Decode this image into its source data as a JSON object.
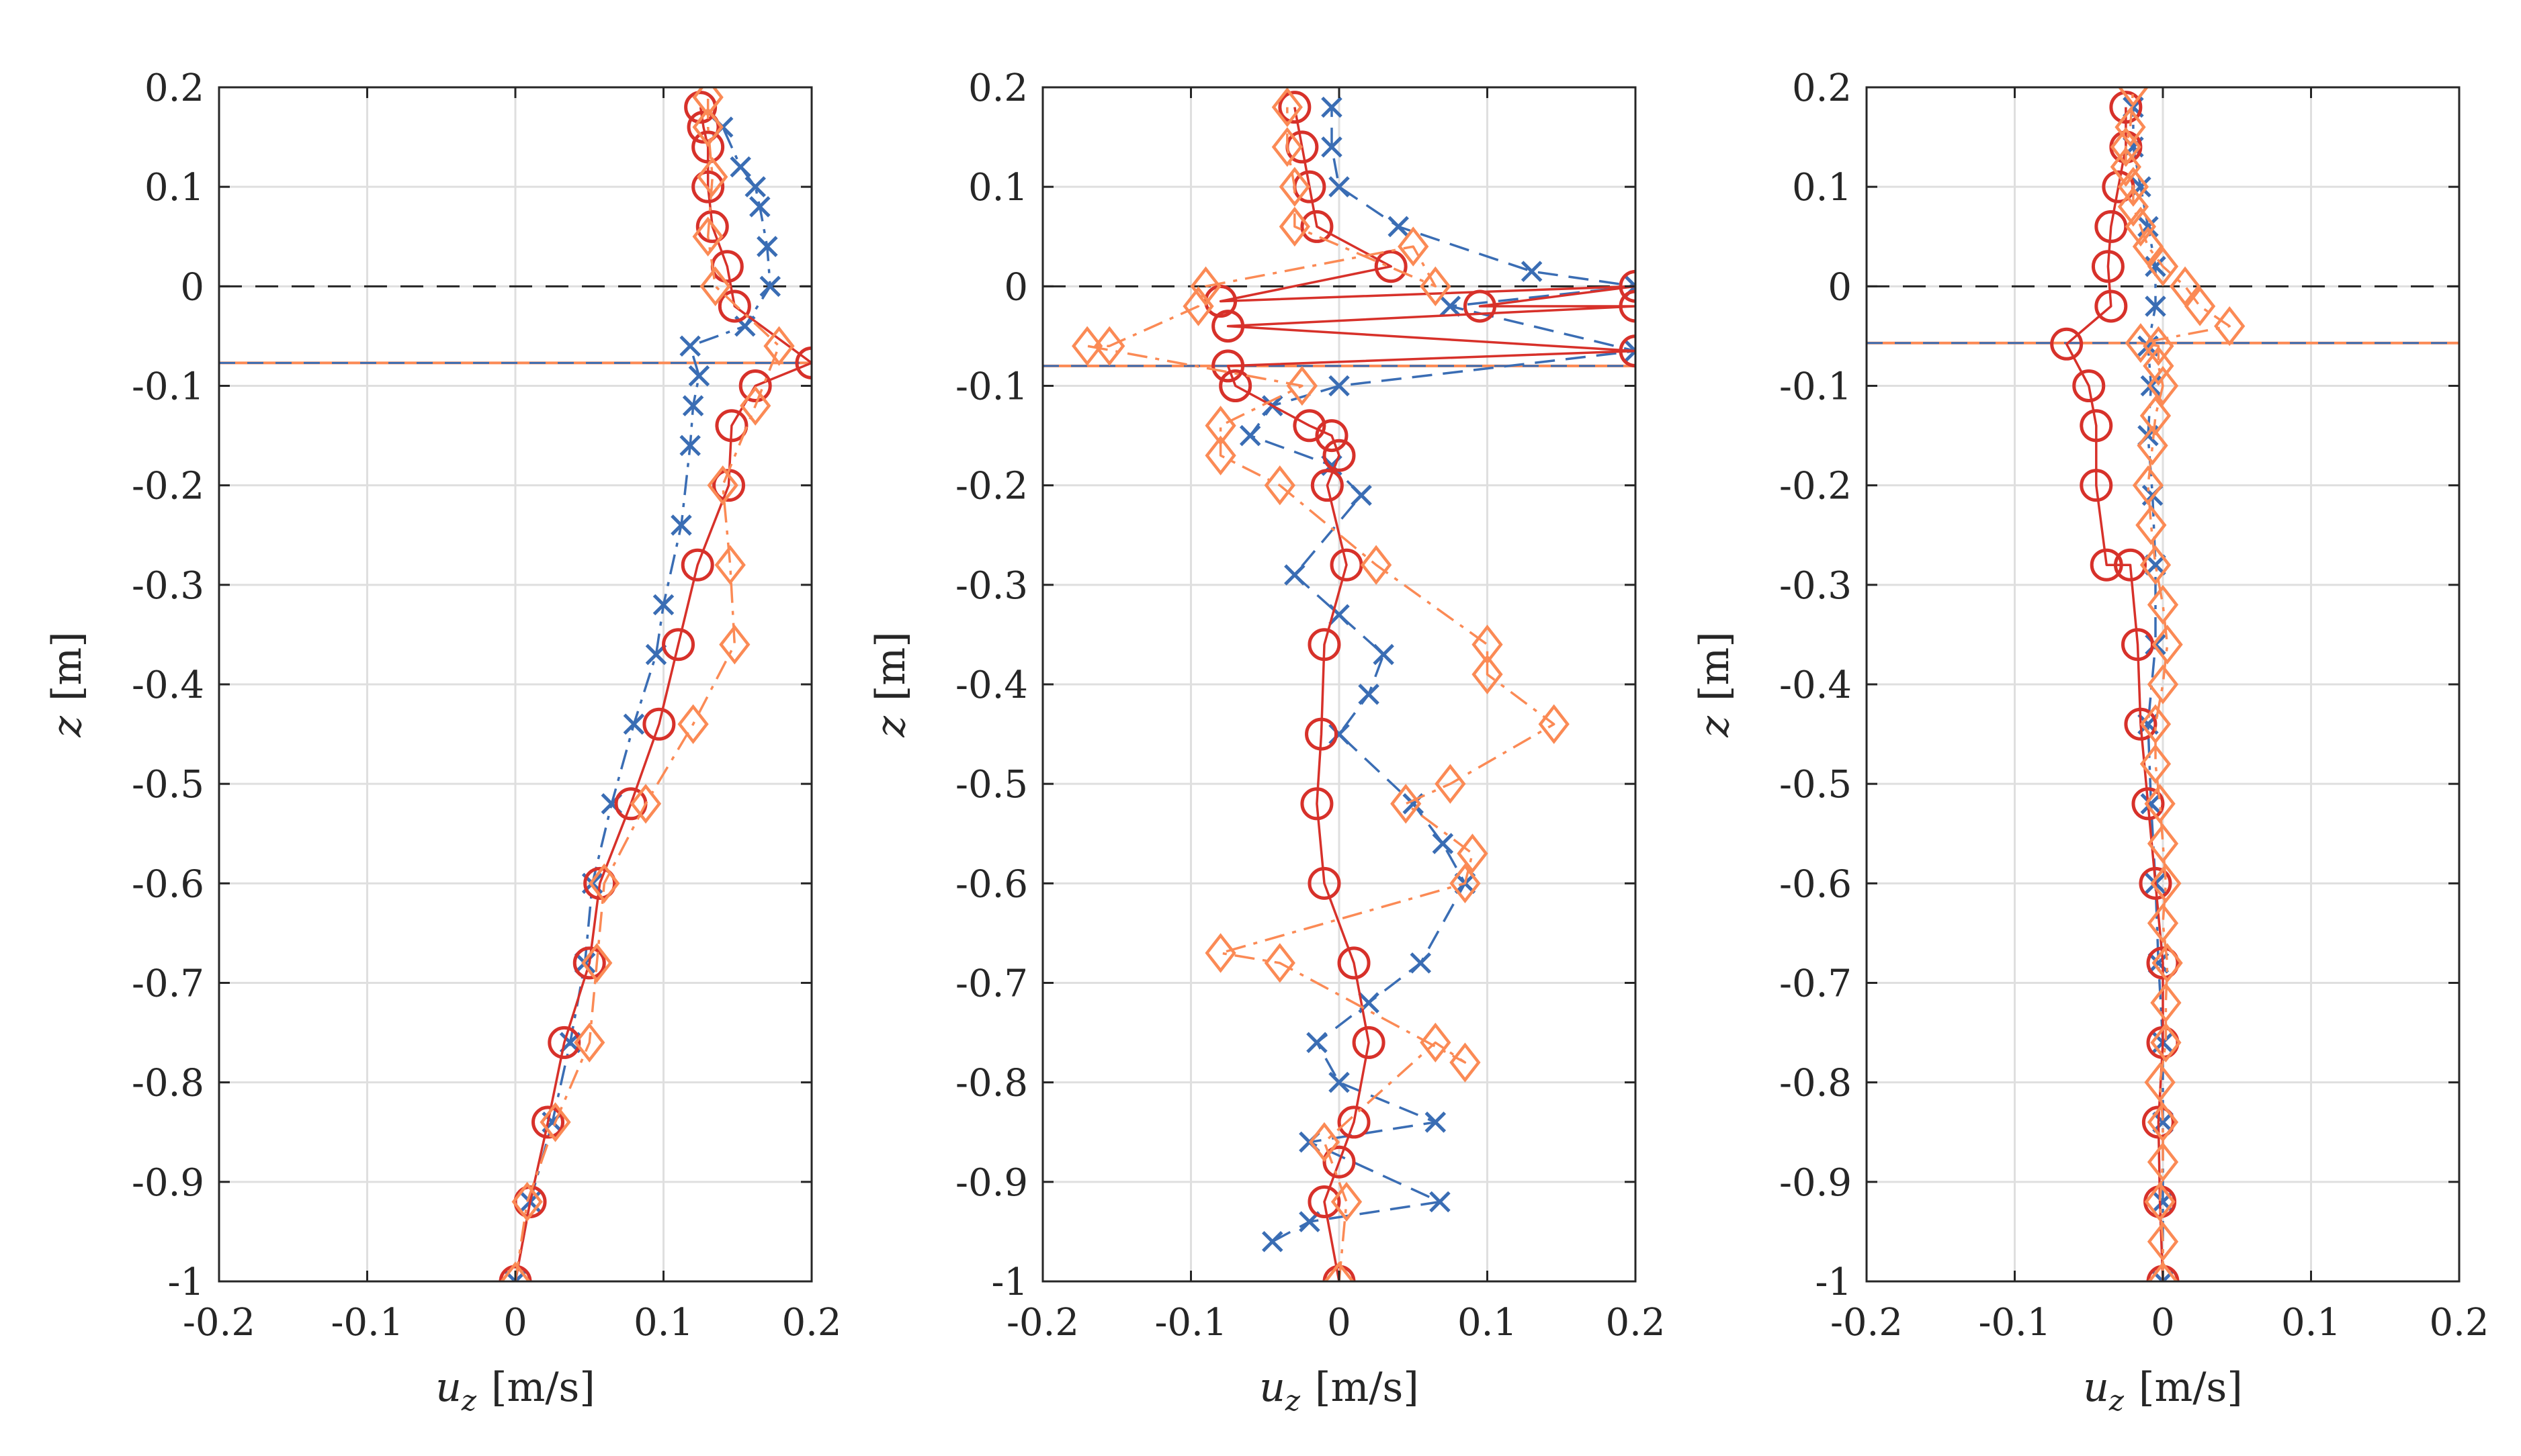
{
  "colors": {
    "series_a": "#3a6db4",
    "series_b": "#d7312a",
    "series_c": "#fb8a55",
    "axis": "#262626",
    "grid": "#dfdfdf"
  },
  "chart_data": [
    {
      "type": "line",
      "panel": "left",
      "xlabel_var": "u",
      "xlabel_sub": "z",
      "xlabel_unit": "[m/s]",
      "ylabel_var": "z",
      "ylabel_unit": "[m]",
      "xlim": [
        -0.2,
        0.2
      ],
      "ylim": [
        -1,
        0.2
      ],
      "xticks": [
        "-0.2",
        "-0.1",
        "0",
        "0.1",
        "0.2"
      ],
      "yticks": [
        "-1",
        "-0.9",
        "-0.8",
        "-0.7",
        "-0.6",
        "-0.5",
        "-0.4",
        "-0.3",
        "-0.2",
        "-0.1",
        "0",
        "0.1",
        "0.2"
      ],
      "grid": true,
      "interface_z": -0.077,
      "series": [
        {
          "name": "blue-x-dashdot",
          "marker": "x",
          "linestyle": "dashdot",
          "x": [
            0.0,
            0.01,
            0.025,
            0.037,
            0.047,
            0.052,
            0.065,
            0.08,
            0.095,
            0.1,
            0.112,
            0.118,
            0.12,
            0.124,
            0.118,
            0.155,
            0.172,
            0.17,
            0.165,
            0.162,
            0.152,
            0.14
          ],
          "y": [
            -1.0,
            -0.92,
            -0.84,
            -0.76,
            -0.68,
            -0.6,
            -0.52,
            -0.44,
            -0.37,
            -0.32,
            -0.24,
            -0.16,
            -0.12,
            -0.09,
            -0.06,
            -0.04,
            0.0,
            0.04,
            0.08,
            0.1,
            0.12,
            0.16
          ]
        },
        {
          "name": "red-o-solid",
          "marker": "o",
          "linestyle": "solid",
          "x": [
            0.0,
            0.01,
            0.022,
            0.033,
            0.05,
            0.057,
            0.078,
            0.097,
            0.11,
            0.123,
            0.144,
            0.146,
            0.162,
            0.2,
            0.148,
            0.143,
            0.133,
            0.13,
            0.13,
            0.127,
            0.125
          ],
          "y": [
            -1.0,
            -0.92,
            -0.84,
            -0.76,
            -0.68,
            -0.6,
            -0.52,
            -0.44,
            -0.36,
            -0.28,
            -0.2,
            -0.14,
            -0.1,
            -0.077,
            -0.02,
            0.02,
            0.06,
            0.1,
            0.14,
            0.16,
            0.18
          ]
        },
        {
          "name": "orange-diamond-dashdot",
          "marker": "diamond",
          "linestyle": "dashdot",
          "x": [
            0.0,
            0.008,
            0.027,
            0.05,
            0.055,
            0.06,
            0.088,
            0.12,
            0.148,
            0.145,
            0.14,
            0.162,
            0.178,
            0.135,
            0.13,
            0.133,
            0.13,
            0.13
          ],
          "y": [
            -1.0,
            -0.92,
            -0.84,
            -0.76,
            -0.68,
            -0.6,
            -0.52,
            -0.44,
            -0.36,
            -0.28,
            -0.2,
            -0.12,
            -0.06,
            0.0,
            0.05,
            0.11,
            0.16,
            0.19
          ]
        }
      ]
    },
    {
      "type": "line",
      "panel": "middle",
      "xlabel_var": "u",
      "xlabel_sub": "z",
      "xlabel_unit": "[m/s]",
      "ylabel_var": "z",
      "ylabel_unit": "[m]",
      "xlim": [
        -0.2,
        0.2
      ],
      "ylim": [
        -1,
        0.2
      ],
      "xticks": [
        "-0.2",
        "-0.1",
        "0",
        "0.1",
        "0.2"
      ],
      "yticks": [
        "-1",
        "-0.9",
        "-0.8",
        "-0.7",
        "-0.6",
        "-0.5",
        "-0.4",
        "-0.3",
        "-0.2",
        "-0.1",
        "0",
        "0.1",
        "0.2"
      ],
      "grid": true,
      "interface_z": -0.08,
      "series": [
        {
          "name": "blue-x-dashed",
          "marker": "x",
          "linestyle": "dashed",
          "x": [
            -0.045,
            -0.02,
            0.068,
            -0.02,
            0.065,
            0.0,
            -0.015,
            0.02,
            0.055,
            0.085,
            0.07,
            0.05,
            0.0,
            0.02,
            0.03,
            0.0,
            -0.03,
            0.015,
            -0.005,
            -0.06,
            -0.045,
            0.0,
            0.2,
            0.075,
            0.2,
            0.13,
            0.04,
            0.0,
            -0.005,
            -0.005
          ],
          "y": [
            -0.96,
            -0.94,
            -0.92,
            -0.86,
            -0.84,
            -0.8,
            -0.76,
            -0.72,
            -0.68,
            -0.6,
            -0.56,
            -0.52,
            -0.45,
            -0.41,
            -0.37,
            -0.33,
            -0.29,
            -0.21,
            -0.18,
            -0.15,
            -0.12,
            -0.1,
            -0.065,
            -0.02,
            0.0,
            0.015,
            0.06,
            0.1,
            0.14,
            0.18
          ]
        },
        {
          "name": "red-o-solid",
          "marker": "o",
          "linestyle": "solid",
          "x": [
            0.0,
            -0.01,
            0.0,
            0.01,
            0.02,
            0.01,
            -0.01,
            -0.015,
            -0.012,
            -0.01,
            0.005,
            -0.008,
            0.0,
            -0.005,
            -0.02,
            -0.07,
            -0.075,
            0.2,
            -0.075,
            0.2,
            0.095,
            0.2,
            -0.08,
            0.035,
            -0.015,
            -0.02,
            -0.025,
            -0.03
          ],
          "y": [
            -1.0,
            -0.92,
            -0.88,
            -0.84,
            -0.76,
            -0.68,
            -0.6,
            -0.52,
            -0.45,
            -0.36,
            -0.28,
            -0.2,
            -0.17,
            -0.15,
            -0.14,
            -0.1,
            -0.08,
            -0.065,
            -0.04,
            -0.02,
            -0.02,
            0.0,
            -0.015,
            0.02,
            0.06,
            0.1,
            0.14,
            0.18
          ]
        },
        {
          "name": "orange-diamond-dashdot",
          "marker": "diamond",
          "linestyle": "dashdot",
          "x": [
            0.0,
            0.005,
            -0.01,
            0.065,
            0.085,
            -0.04,
            -0.08,
            0.085,
            0.09,
            0.045,
            0.075,
            0.145,
            0.1,
            0.1,
            0.025,
            -0.04,
            -0.08,
            -0.08,
            -0.025,
            -0.17,
            -0.155,
            -0.095,
            -0.09,
            0.05,
            0.065,
            -0.03,
            -0.03,
            -0.035,
            -0.035
          ],
          "y": [
            -1.0,
            -0.92,
            -0.86,
            -0.76,
            -0.78,
            -0.68,
            -0.67,
            -0.6,
            -0.57,
            -0.52,
            -0.5,
            -0.44,
            -0.39,
            -0.36,
            -0.28,
            -0.2,
            -0.17,
            -0.14,
            -0.1,
            -0.06,
            -0.06,
            -0.02,
            0.0,
            0.04,
            0.0,
            0.06,
            0.1,
            0.14,
            0.18
          ]
        }
      ]
    },
    {
      "type": "line",
      "panel": "right",
      "xlabel_var": "u",
      "xlabel_sub": "z",
      "xlabel_unit": "[m/s]",
      "ylabel_var": "z",
      "ylabel_unit": "[m]",
      "xlim": [
        -0.2,
        0.2
      ],
      "ylim": [
        -1,
        0.2
      ],
      "xticks": [
        "-0.2",
        "-0.1",
        "0",
        "0.1",
        "0.2"
      ],
      "yticks": [
        "-1",
        "-0.9",
        "-0.8",
        "-0.7",
        "-0.6",
        "-0.5",
        "-0.4",
        "-0.3",
        "-0.2",
        "-0.1",
        "0",
        "0.1",
        "0.2"
      ],
      "grid": true,
      "interface_z": -0.057,
      "series": [
        {
          "name": "blue-x-dashdot",
          "marker": "x",
          "linestyle": "dashdot",
          "x": [
            0.0,
            0.0,
            0.0,
            0.0,
            -0.003,
            -0.005,
            -0.008,
            -0.01,
            -0.005,
            -0.005,
            -0.007,
            -0.01,
            -0.008,
            -0.01,
            -0.005,
            -0.005,
            -0.01,
            -0.015,
            -0.02,
            -0.02
          ],
          "y": [
            -1.0,
            -0.92,
            -0.84,
            -0.76,
            -0.68,
            -0.6,
            -0.52,
            -0.44,
            -0.36,
            -0.28,
            -0.21,
            -0.15,
            -0.1,
            -0.06,
            -0.02,
            0.02,
            0.06,
            0.1,
            0.14,
            0.18
          ]
        },
        {
          "name": "red-o-solid",
          "marker": "o",
          "linestyle": "solid",
          "x": [
            0.0,
            -0.002,
            -0.003,
            0.0,
            0.0,
            -0.005,
            -0.01,
            -0.015,
            -0.017,
            -0.022,
            -0.038,
            -0.045,
            -0.045,
            -0.05,
            -0.065,
            -0.035,
            -0.037,
            -0.035,
            -0.03,
            -0.025,
            -0.025
          ],
          "y": [
            -1.0,
            -0.92,
            -0.84,
            -0.76,
            -0.68,
            -0.6,
            -0.52,
            -0.44,
            -0.36,
            -0.28,
            -0.28,
            -0.2,
            -0.14,
            -0.1,
            -0.058,
            -0.02,
            0.02,
            0.06,
            0.1,
            0.14,
            0.18
          ]
        },
        {
          "name": "orange-diamond-dashdot",
          "marker": "diamond",
          "linestyle": "dashdot",
          "x": [
            0.0,
            0.0,
            -0.002,
            0.0,
            0.0,
            -0.002,
            0.002,
            0.002,
            0.003,
            0.0,
            0.002,
            0.0,
            -0.002,
            -0.005,
            -0.005,
            0.0,
            0.003,
            0.0,
            -0.005,
            -0.008,
            -0.01,
            -0.007,
            -0.005,
            0.0,
            -0.003,
            -0.003,
            -0.015,
            0.045,
            0.025,
            0.015,
            0.0,
            -0.01,
            -0.015,
            -0.02,
            -0.02,
            -0.025,
            -0.025,
            -0.022,
            -0.02
          ],
          "y": [
            -1.0,
            -0.96,
            -0.92,
            -0.88,
            -0.84,
            -0.8,
            -0.76,
            -0.72,
            -0.68,
            -0.64,
            -0.6,
            -0.56,
            -0.52,
            -0.48,
            -0.44,
            -0.4,
            -0.36,
            -0.32,
            -0.28,
            -0.24,
            -0.2,
            -0.16,
            -0.13,
            -0.1,
            -0.08,
            -0.06,
            -0.057,
            -0.04,
            -0.02,
            0.0,
            0.02,
            0.04,
            0.06,
            0.08,
            0.1,
            0.12,
            0.14,
            0.16,
            0.2
          ]
        }
      ]
    }
  ]
}
